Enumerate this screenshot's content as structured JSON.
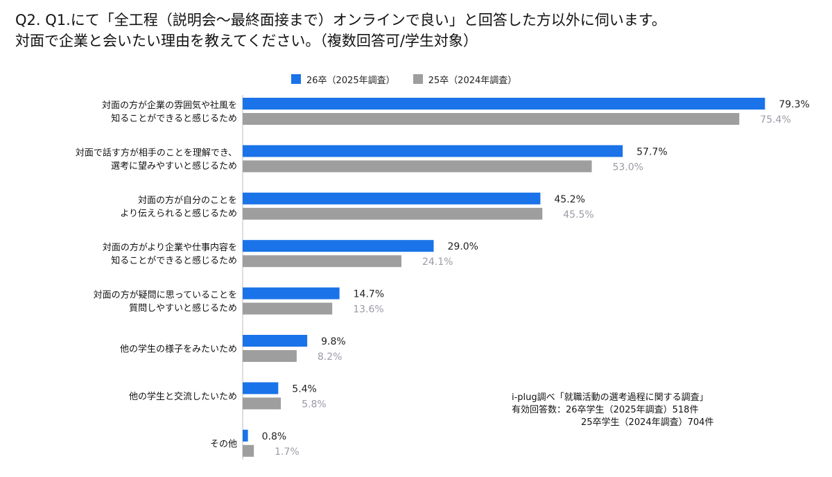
{
  "chart_data": {
    "type": "bar",
    "orientation": "horizontal",
    "title": [
      "Q2. Q1.にて「全工程（説明会～最終面接まで）オンラインで良い」と回答した方以外に伺います。",
      "対面で企業と会いたい理由を教えてください。（複数回答可/学生対象）"
    ],
    "categories": [
      [
        "対面の方が企業の雰囲気や社風を",
        "知ることができると感じるため"
      ],
      [
        "対面で話す方が相手のことを理解でき、",
        "選考に望みやすいと感じるため"
      ],
      [
        "対面の方が自分のことを",
        "より伝えられると感じるため"
      ],
      [
        "対面の方がより企業や仕事内容を",
        "知ることができると感じるため"
      ],
      [
        "対面の方が疑問に思っていることを",
        "質問しやすいと感じるため"
      ],
      [
        "他の学生の様子をみたいため"
      ],
      [
        "他の学生と交流したいため"
      ],
      [
        "その他"
      ]
    ],
    "series": [
      {
        "name": "26卒（2025年調査）",
        "color": "#1a73e8",
        "label_color": "#222222",
        "values": [
          79.3,
          57.7,
          45.2,
          29.0,
          14.7,
          9.8,
          5.4,
          0.8
        ],
        "labels": [
          "79.3%",
          "57.7%",
          "45.2%",
          "29.0%",
          "14.7%",
          "9.8%",
          "5.4%",
          "0.8%"
        ]
      },
      {
        "name": "25卒（2024年調査）",
        "color": "#9e9e9e",
        "label_color": "#9a9aa6",
        "values": [
          75.4,
          53.0,
          45.5,
          24.1,
          13.6,
          8.2,
          5.8,
          1.7
        ],
        "labels": [
          "75.4%",
          "53.0%",
          "45.5%",
          "24.1%",
          "13.6%",
          "8.2%",
          "5.8%",
          "1.7%"
        ]
      }
    ],
    "xlim": [
      0,
      100
    ],
    "grid": false,
    "legend_position": "top-center"
  },
  "note": {
    "line1": "i-plug調べ「就職活動の選考過程に関する調査」",
    "line2": "有効回答数：26卒学生（2025年調査）518件",
    "line3": "25卒学生（2024年調査）704件"
  }
}
